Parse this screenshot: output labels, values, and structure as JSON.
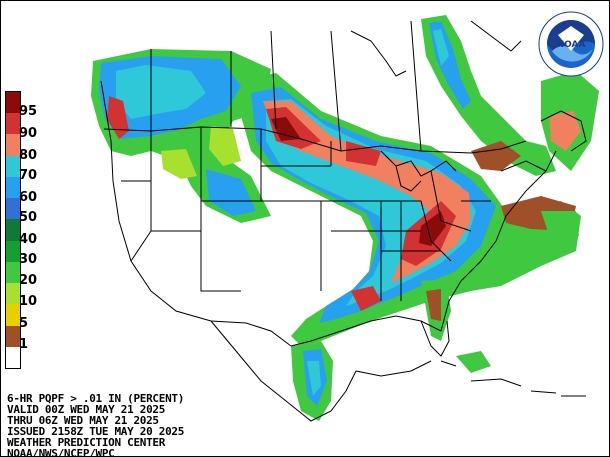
{
  "legend": {
    "labels": [
      "95",
      "90",
      "80",
      "70",
      "60",
      "50",
      "40",
      "30",
      "20",
      "10",
      "5",
      "1"
    ],
    "colors": [
      "#8b0a0a",
      "#d23232",
      "#f08060",
      "#2ec8d8",
      "#28a0f0",
      "#3070d8",
      "#107838",
      "#14a030",
      "#40c840",
      "#a8e030",
      "#e8d000",
      "#a05028",
      "#ffffff"
    ]
  },
  "footer": {
    "line1": "6-HR PQPF > .01 IN (PERCENT)",
    "line2": "VALID 00Z WED MAY 21 2025",
    "line3": "THRU 06Z WED MAY 21 2025",
    "line4": "ISSUED 2158Z TUE MAY 20 2025",
    "line5": "WEATHER PREDICTION CENTER",
    "line6": "NOAA/NWS/NCEP/WPC"
  },
  "logo": {
    "text": "NOAA",
    "ring_text": "NATIONAL OCEANIC AND ATMOSPHERIC ADMINISTRATION · U.S. DEPARTMENT OF COMMERCE"
  },
  "map_colors": {
    "green": "#40c840",
    "light_green": "#a8e030",
    "cyan": "#2ec8d8",
    "blue": "#28a0f0",
    "orange": "#f08060",
    "red": "#d23232",
    "dark_red": "#8b0a0a",
    "brown": "#a05028",
    "yellow": "#e8d000",
    "border": "#000000"
  }
}
